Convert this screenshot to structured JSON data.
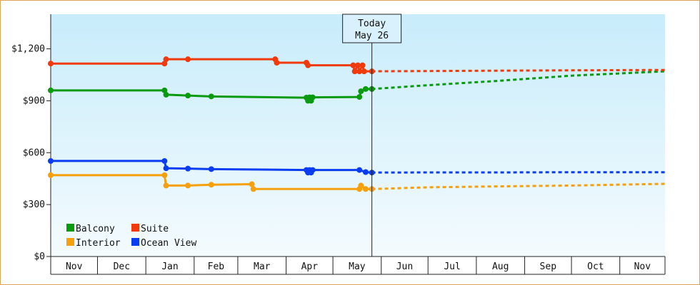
{
  "chart_data": {
    "type": "line",
    "title": "",
    "xlabel": "",
    "ylabel": "",
    "ylim": [
      0,
      1400
    ],
    "y_ticks": [
      {
        "value": 0,
        "label": "$0"
      },
      {
        "value": 300,
        "label": "$300"
      },
      {
        "value": 600,
        "label": "$600"
      },
      {
        "value": 900,
        "label": "$900"
      },
      {
        "value": 1200,
        "label": "$1,200"
      }
    ],
    "x_axis": {
      "start": "2024-11-01",
      "end": "2025-11-30",
      "months": [
        {
          "label": "Nov",
          "start": "2024-11-01",
          "end": "2024-11-30"
        },
        {
          "label": "Dec",
          "start": "2024-12-01",
          "end": "2024-12-31"
        },
        {
          "label": "Jan",
          "start": "2025-01-01",
          "end": "2025-01-31"
        },
        {
          "label": "Feb",
          "start": "2025-02-01",
          "end": "2025-02-28"
        },
        {
          "label": "Mar",
          "start": "2025-03-01",
          "end": "2025-03-31"
        },
        {
          "label": "Apr",
          "start": "2025-04-01",
          "end": "2025-04-30"
        },
        {
          "label": "May",
          "start": "2025-05-01",
          "end": "2025-05-31"
        },
        {
          "label": "Jun",
          "start": "2025-06-01",
          "end": "2025-06-30"
        },
        {
          "label": "Jul",
          "start": "2025-07-01",
          "end": "2025-07-31"
        },
        {
          "label": "Aug",
          "start": "2025-08-01",
          "end": "2025-08-31"
        },
        {
          "label": "Sep",
          "start": "2025-09-01",
          "end": "2025-09-30"
        },
        {
          "label": "Oct",
          "start": "2025-10-01",
          "end": "2025-10-31"
        },
        {
          "label": "Nov",
          "start": "2025-11-01",
          "end": "2025-11-30"
        }
      ]
    },
    "today": {
      "line1": "Today",
      "line2": "May 26",
      "date": "2025-05-26"
    },
    "legend_position": "bottom-left",
    "series": [
      {
        "name": "Balcony",
        "color": "#0a9a10",
        "points": [
          [
            "2024-11-01",
            960
          ],
          [
            "2025-01-13",
            960
          ],
          [
            "2025-01-14",
            935
          ],
          [
            "2025-01-28",
            930
          ],
          [
            "2025-02-12",
            925
          ],
          [
            "2025-04-14",
            918
          ],
          [
            "2025-04-15",
            900
          ],
          [
            "2025-04-16",
            920
          ],
          [
            "2025-04-17",
            900
          ],
          [
            "2025-04-18",
            920
          ],
          [
            "2025-05-18",
            922
          ],
          [
            "2025-05-19",
            955
          ],
          [
            "2025-05-22",
            968
          ],
          [
            "2025-05-26",
            968
          ]
        ],
        "forecast": [
          [
            "2025-05-26",
            968
          ],
          [
            "2025-07-01",
            990
          ],
          [
            "2025-08-15",
            1015
          ],
          [
            "2025-10-01",
            1045
          ],
          [
            "2025-11-30",
            1070
          ]
        ]
      },
      {
        "name": "Suite",
        "color": "#f03a0c",
        "points": [
          [
            "2024-11-01",
            1115
          ],
          [
            "2025-01-13",
            1115
          ],
          [
            "2025-01-14",
            1140
          ],
          [
            "2025-01-28",
            1140
          ],
          [
            "2025-03-25",
            1140
          ],
          [
            "2025-03-26",
            1120
          ],
          [
            "2025-04-14",
            1120
          ],
          [
            "2025-04-15",
            1105
          ],
          [
            "2025-05-14",
            1105
          ],
          [
            "2025-05-15",
            1070
          ],
          [
            "2025-05-17",
            1105
          ],
          [
            "2025-05-18",
            1070
          ],
          [
            "2025-05-20",
            1105
          ],
          [
            "2025-05-21",
            1070
          ],
          [
            "2025-05-26",
            1070
          ]
        ],
        "forecast": [
          [
            "2025-05-26",
            1070
          ],
          [
            "2025-07-01",
            1072
          ],
          [
            "2025-08-15",
            1074
          ],
          [
            "2025-10-01",
            1076
          ],
          [
            "2025-11-30",
            1078
          ]
        ]
      },
      {
        "name": "Interior",
        "color": "#f5a00c",
        "points": [
          [
            "2024-11-01",
            470
          ],
          [
            "2025-01-13",
            470
          ],
          [
            "2025-01-14",
            410
          ],
          [
            "2025-01-28",
            410
          ],
          [
            "2025-02-12",
            415
          ],
          [
            "2025-03-10",
            418
          ],
          [
            "2025-03-11",
            390
          ],
          [
            "2025-05-18",
            390
          ],
          [
            "2025-05-19",
            410
          ],
          [
            "2025-05-22",
            390
          ],
          [
            "2025-05-26",
            390
          ]
        ],
        "forecast": [
          [
            "2025-05-26",
            390
          ],
          [
            "2025-07-01",
            400
          ],
          [
            "2025-08-15",
            405
          ],
          [
            "2025-10-01",
            410
          ],
          [
            "2025-11-30",
            420
          ]
        ]
      },
      {
        "name": "Ocean View",
        "color": "#0a3cf0",
        "points": [
          [
            "2024-11-01",
            552
          ],
          [
            "2025-01-13",
            552
          ],
          [
            "2025-01-14",
            510
          ],
          [
            "2025-01-28",
            508
          ],
          [
            "2025-02-12",
            505
          ],
          [
            "2025-04-14",
            500
          ],
          [
            "2025-04-15",
            485
          ],
          [
            "2025-04-16",
            500
          ],
          [
            "2025-04-17",
            485
          ],
          [
            "2025-04-18",
            500
          ],
          [
            "2025-05-18",
            500
          ],
          [
            "2025-05-22",
            488
          ],
          [
            "2025-05-26",
            485
          ]
        ],
        "forecast": [
          [
            "2025-05-26",
            485
          ],
          [
            "2025-07-01",
            486
          ],
          [
            "2025-08-15",
            486
          ],
          [
            "2025-10-01",
            487
          ],
          [
            "2025-11-30",
            487
          ]
        ]
      }
    ],
    "legend": [
      {
        "series": "Balcony",
        "row": 0,
        "col": 0
      },
      {
        "series": "Suite",
        "row": 0,
        "col": 1
      },
      {
        "series": "Interior",
        "row": 1,
        "col": 0
      },
      {
        "series": "Ocean View",
        "row": 1,
        "col": 1
      }
    ]
  }
}
